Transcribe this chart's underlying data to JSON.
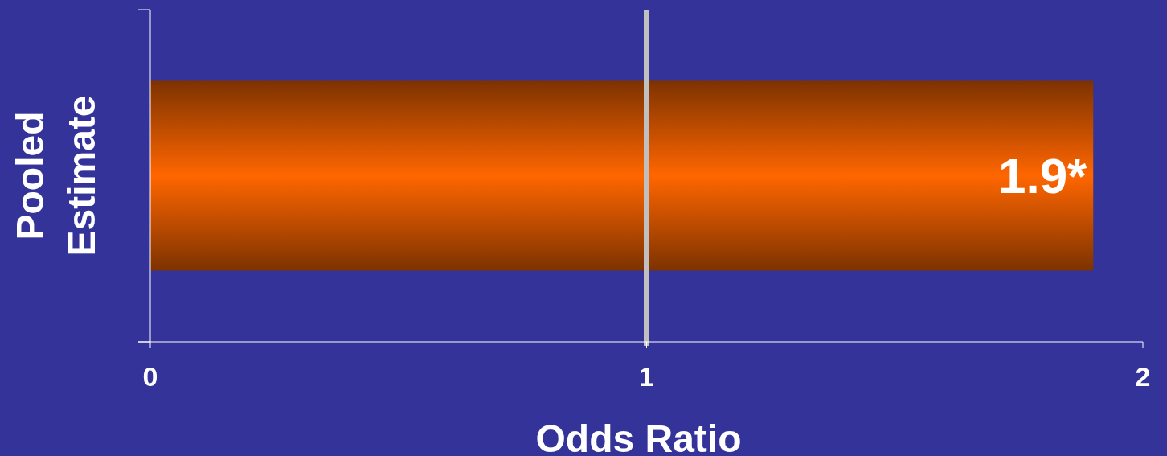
{
  "chart_data": {
    "type": "bar",
    "orientation": "horizontal",
    "categories": [
      null
    ],
    "values": [
      1.9
    ],
    "value_labels": [
      "1.9*"
    ],
    "color": "#ff6600",
    "xlim": [
      0,
      2
    ],
    "xticks": [
      0,
      1,
      2
    ],
    "xlabel": "Odds Ratio",
    "ylabel": "Pooled Estimate",
    "ref_lines": [
      {
        "axis": "x",
        "value": 1,
        "color": "#c0c0c0"
      }
    ],
    "grid": false
  }
}
